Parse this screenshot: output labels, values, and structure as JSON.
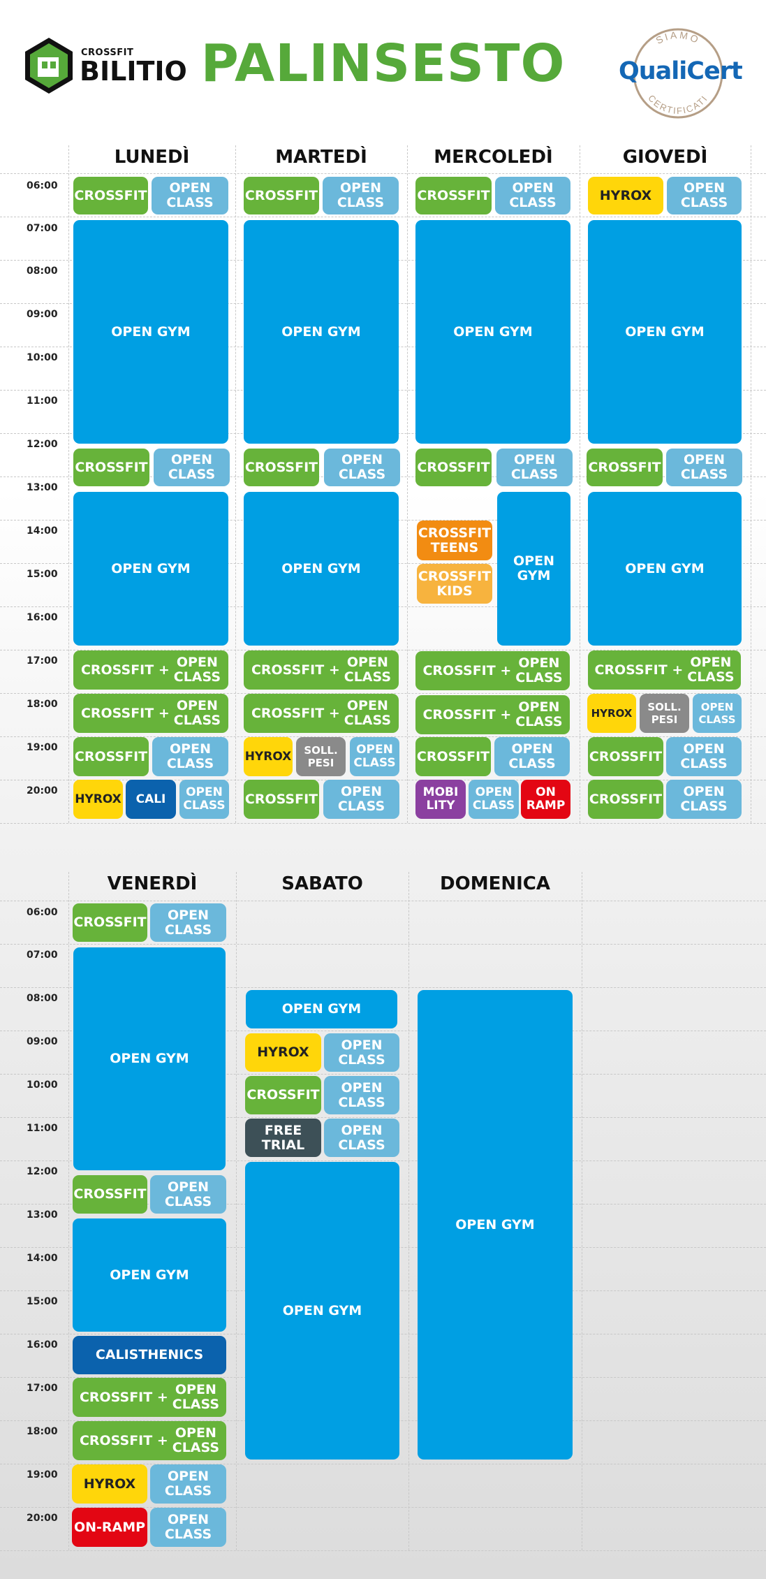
{
  "header": {
    "logo_small": "CROSSFIT",
    "logo_big": "BILITIO",
    "title": "PALINSESTO",
    "badge_top": "SIAMO",
    "badge_name": "QualiCert",
    "badge_bottom": "CERTIFICATI"
  },
  "times": [
    "06:00",
    "07:00",
    "08:00",
    "09:00",
    "10:00",
    "11:00",
    "12:00",
    "13:00",
    "14:00",
    "15:00",
    "16:00",
    "17:00",
    "18:00",
    "19:00",
    "20:00"
  ],
  "week1": {
    "days": [
      "LUNEDÌ",
      "MARTEDÌ",
      "MERCOLEDÌ",
      "GIOVEDÌ"
    ]
  },
  "week2": {
    "days": [
      "VENERDÌ",
      "SABATO",
      "DOMENICA"
    ]
  },
  "labels": {
    "crossfit": "CROSSFIT",
    "open_class": "OPEN\nCLASS",
    "open_gym": "OPEN GYM",
    "open_gym_2line": "OPEN\nGYM",
    "crossfit_plus": "CROSSFIT +",
    "hyrox": "HYROX",
    "cali": "CALI",
    "soll_pesi": "SOLL.\nPESI",
    "mobility": "MOBI\nLITY",
    "on_ramp_2line": "ON\nRAMP",
    "on_ramp": "ON-RAMP",
    "crossfit_teens": "CROSSFIT\nTEENS",
    "crossfit_kids": "CROSSFIT\nKIDS",
    "calisthenics": "CALISTHENICS",
    "free_trial": "FREE\nTRIAL"
  },
  "colors": {
    "crossfit": "#67b33a",
    "open_class": "#6bb8db",
    "open_gym": "#009fe3",
    "hyrox": "#ffd60a",
    "cali": "#0b62ad",
    "soll_pesi": "#8a8a8a",
    "mobility": "#8b40a0",
    "on_ramp": "#e30613",
    "teens": "#f28c12",
    "kids": "#f7b33e",
    "free_trial": "#3d5057",
    "title": "#56a93a"
  }
}
